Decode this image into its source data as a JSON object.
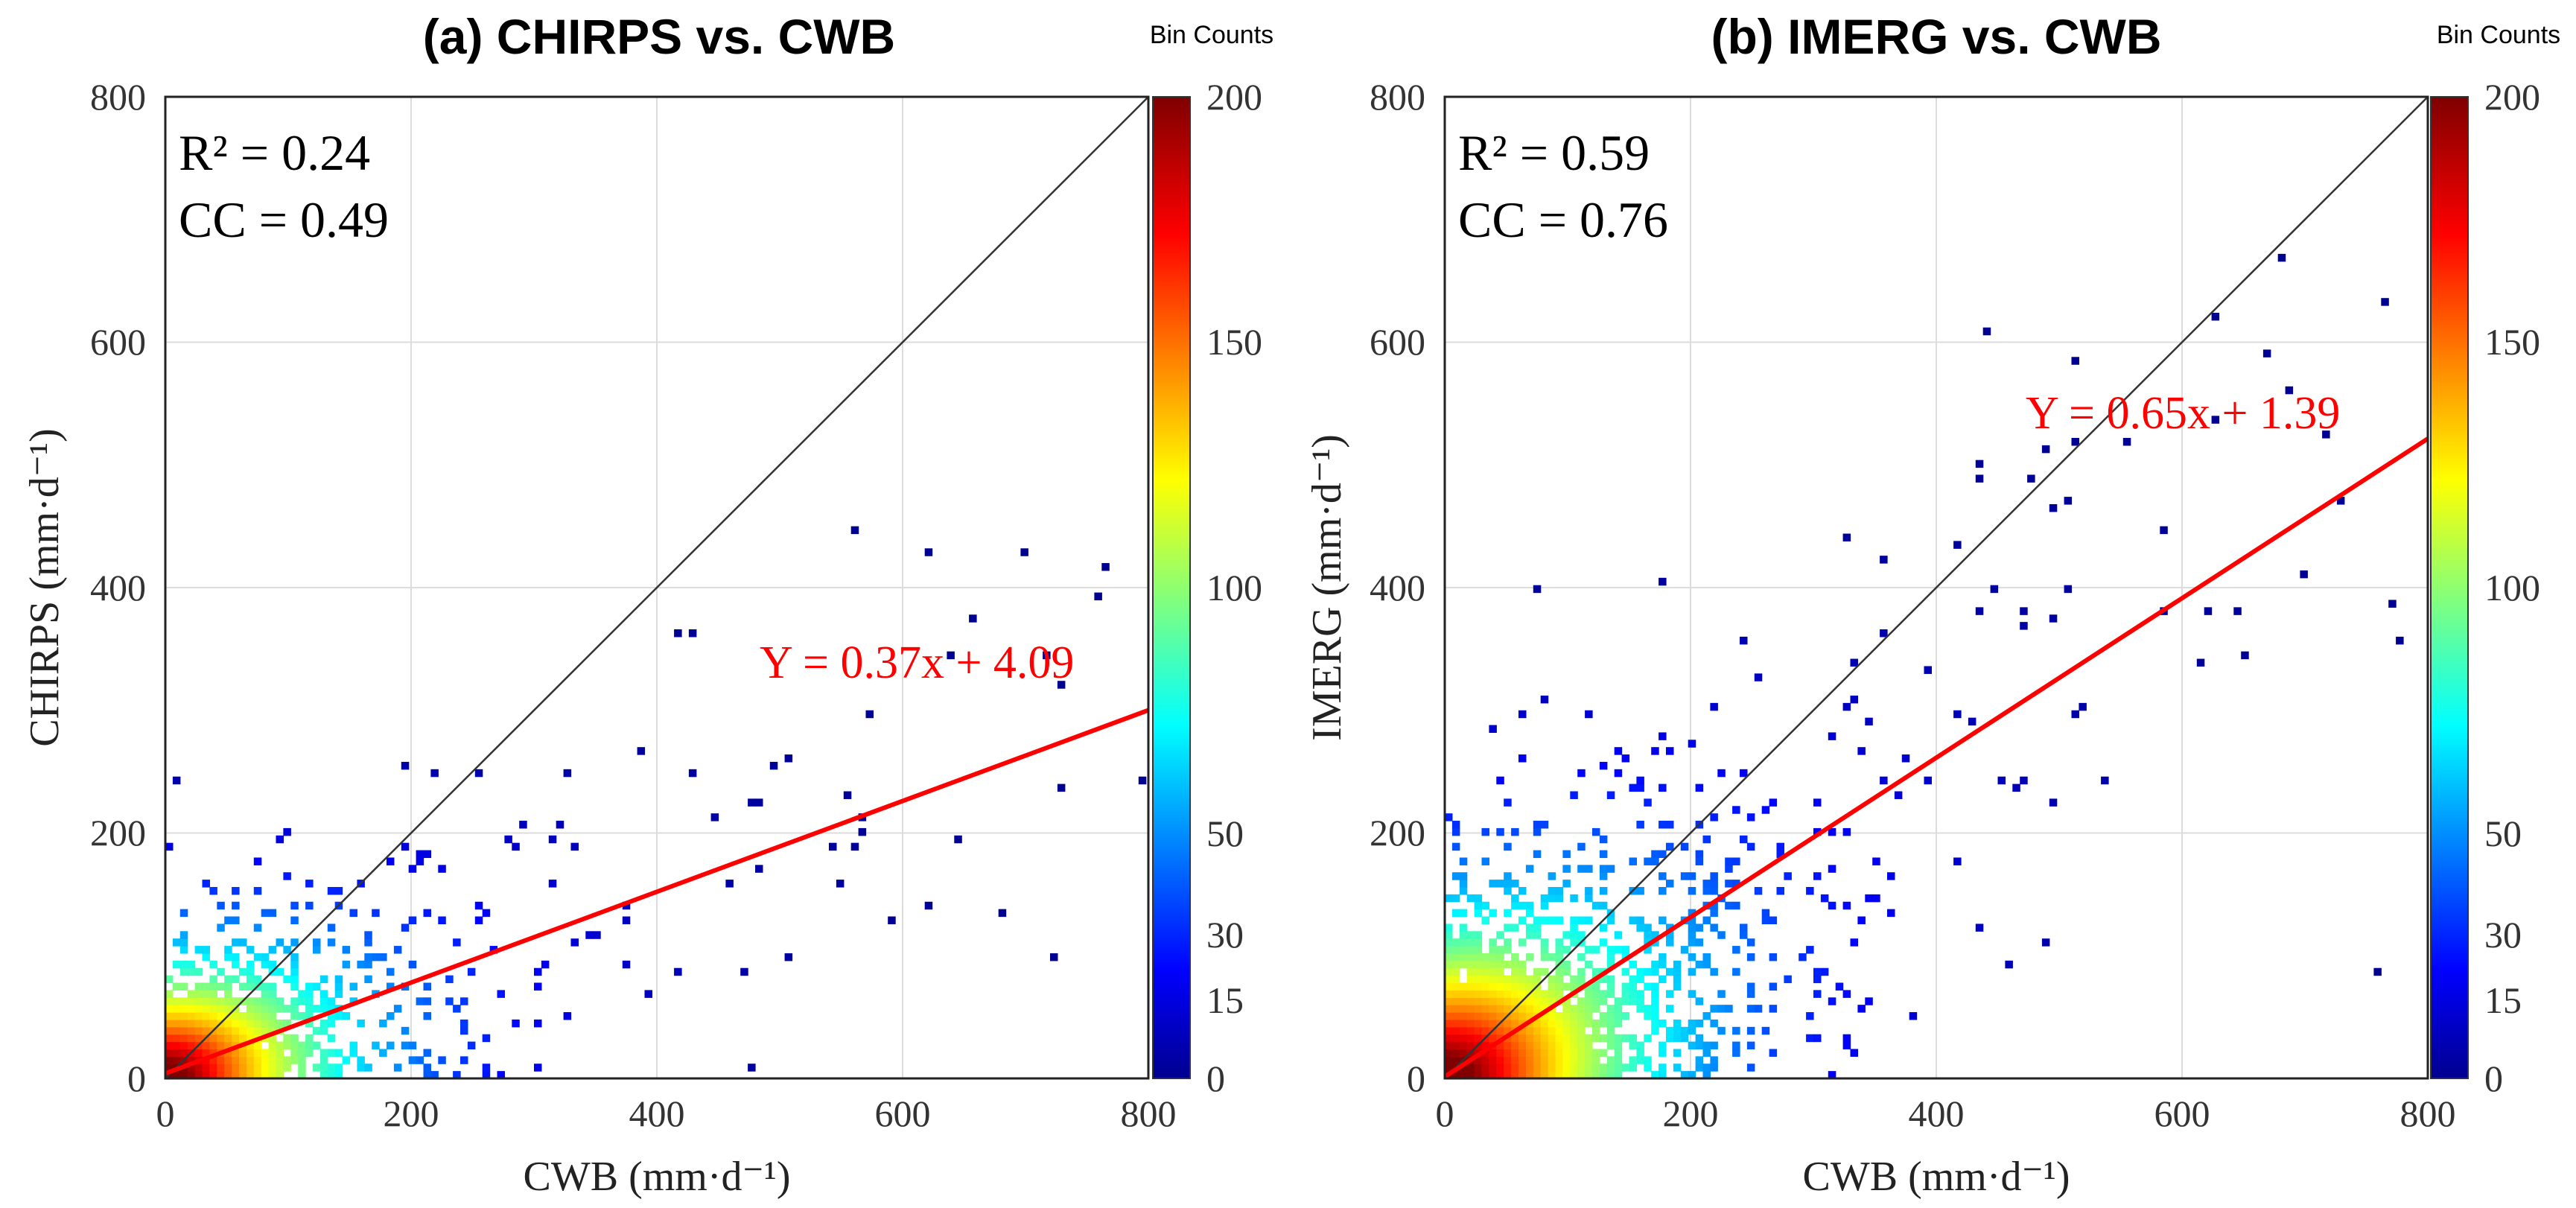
{
  "chart_data": [
    {
      "id": "a",
      "type": "heatmap",
      "title": "(a) CHIRPS vs. CWB",
      "xlabel": "CWB (mm·d⁻¹)",
      "ylabel": "CHIRPS (mm·d⁻¹)",
      "xlim": [
        0,
        800
      ],
      "ylim": [
        0,
        800
      ],
      "x_ticks": [
        "0",
        "200",
        "400",
        "600",
        "800"
      ],
      "y_ticks": [
        "0",
        "200",
        "400",
        "600",
        "800"
      ],
      "grid": true,
      "stats": {
        "r2": "R² = 0.24",
        "cc": "CC = 0.49"
      },
      "regression": {
        "label": "Y = 0.37x + 4.09",
        "slope": 0.37,
        "intercept": 4.09,
        "color": "#ff0000"
      },
      "one_to_one_line": {
        "from": [
          0,
          0
        ],
        "to": [
          800,
          800
        ]
      },
      "density": {
        "slope": 0.37,
        "intercept": 4.09,
        "spread_x": 160,
        "spread_y": 110,
        "max_x": 800,
        "max_y": 460
      },
      "colorbar": {
        "title": "Bin Counts",
        "tick_labels": [
          "0",
          "15",
          "30",
          "50",
          "100",
          "150",
          "200"
        ],
        "tick_values": [
          0,
          15,
          30,
          50,
          100,
          150,
          200
        ],
        "range": [
          0,
          200
        ]
      }
    },
    {
      "id": "b",
      "type": "heatmap",
      "title": "(b) IMERG vs. CWB",
      "xlabel": "CWB (mm·d⁻¹)",
      "ylabel": "IMERG (mm·d⁻¹)",
      "xlim": [
        0,
        800
      ],
      "ylim": [
        0,
        800
      ],
      "x_ticks": [
        "0",
        "200",
        "400",
        "600",
        "800"
      ],
      "y_ticks": [
        "0",
        "200",
        "400",
        "600",
        "800"
      ],
      "grid": true,
      "stats": {
        "r2": "R² = 0.59",
        "cc": "CC = 0.76"
      },
      "regression": {
        "label": "Y = 0.65x + 1.39",
        "slope": 0.65,
        "intercept": 1.39,
        "color": "#ff0000"
      },
      "one_to_one_line": {
        "from": [
          0,
          0
        ],
        "to": [
          800,
          800
        ]
      },
      "density": {
        "slope": 0.65,
        "intercept": 1.39,
        "spread_x": 200,
        "spread_y": 150,
        "max_x": 800,
        "max_y": 680
      },
      "colorbar": {
        "title": "Bin Counts",
        "tick_labels": [
          "0",
          "15",
          "30",
          "50",
          "100",
          "150",
          "200"
        ],
        "tick_values": [
          0,
          15,
          30,
          50,
          100,
          150,
          200
        ],
        "range": [
          0,
          200
        ]
      }
    }
  ]
}
